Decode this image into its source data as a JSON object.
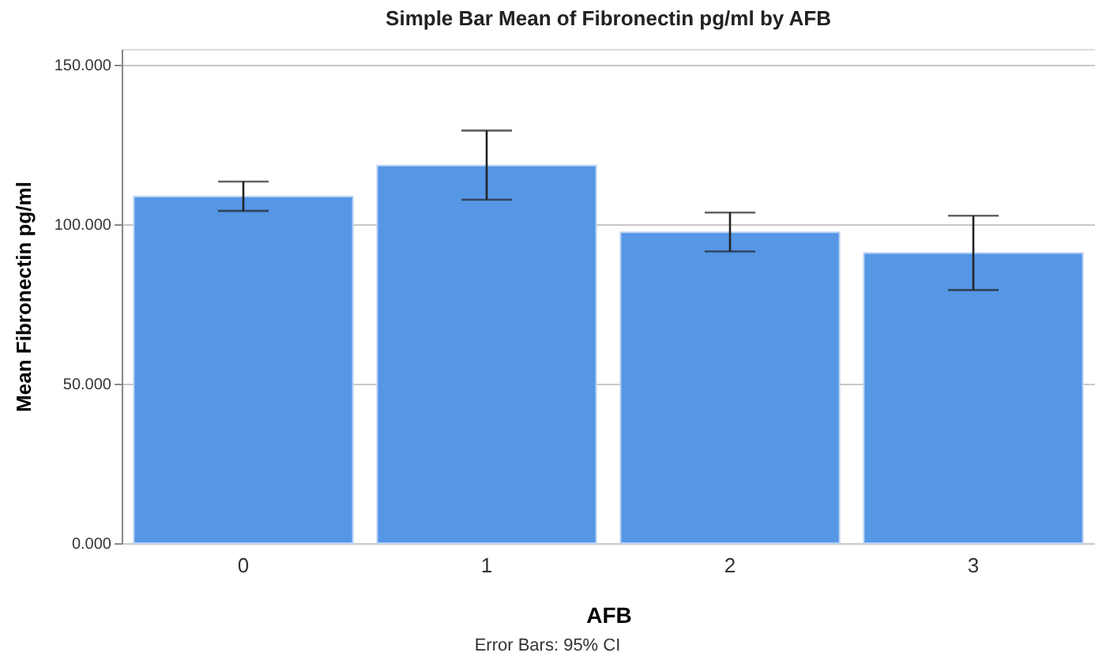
{
  "chart_data": {
    "type": "bar",
    "title": "Simple Bar Mean of Fibronectin pg/ml by AFB",
    "xlabel": "AFB",
    "ylabel": "Mean Fibronectin pg/ml",
    "categories": [
      "0",
      "1",
      "2",
      "3"
    ],
    "values": [
      108.7,
      118.4,
      97.5,
      91.0
    ],
    "errors": [
      [
        104.2,
        113.4
      ],
      [
        107.7,
        129.4
      ],
      [
        91.5,
        103.7
      ],
      [
        79.4,
        102.7
      ]
    ],
    "color": "#5596e5",
    "ylim": [
      0,
      155
    ],
    "yticks": [
      {
        "value": 0,
        "label": "0.000"
      },
      {
        "value": 50,
        "label": "50.000"
      },
      {
        "value": 100,
        "label": "100.000"
      },
      {
        "value": 150,
        "label": "150.000"
      }
    ],
    "grid": "y",
    "annotations": [
      "Error Bars: 95% CI"
    ]
  }
}
